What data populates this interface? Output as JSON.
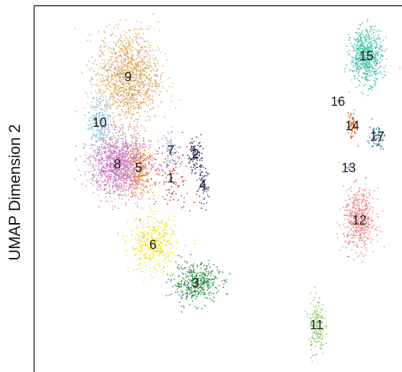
{
  "chart_data": {
    "type": "scatter",
    "title": "",
    "xlabel": "",
    "ylabel": "UMAP Dimension 2",
    "grid": false,
    "legend": "none",
    "axes_drawn": [
      "left",
      "top"
    ],
    "clusters": [
      {
        "label": "1",
        "x": 0.37,
        "y": 0.52,
        "color": "#d62728",
        "spread": [
          0.06,
          0.08
        ],
        "n": 120
      },
      {
        "label": "2",
        "x": 0.44,
        "y": 0.59,
        "color": "#1f1f5e",
        "spread": [
          0.02,
          0.05
        ],
        "n": 90
      },
      {
        "label": "3",
        "x": 0.44,
        "y": 0.22,
        "color": "#238b3a",
        "spread": [
          0.06,
          0.05
        ],
        "n": 420
      },
      {
        "label": "4",
        "x": 0.46,
        "y": 0.5,
        "color": "#3b2f7a",
        "spread": [
          0.015,
          0.05
        ],
        "n": 70
      },
      {
        "label": "5",
        "x": 0.28,
        "y": 0.55,
        "color": "#f08a24",
        "spread": [
          0.04,
          0.08
        ],
        "n": 350
      },
      {
        "label": "6",
        "x": 0.32,
        "y": 0.33,
        "color": "#f5e00b",
        "spread": [
          0.06,
          0.07
        ],
        "n": 380
      },
      {
        "label": "7",
        "x": 0.37,
        "y": 0.6,
        "color": "#8ea8d8",
        "spread": [
          0.02,
          0.04
        ],
        "n": 80
      },
      {
        "label": "8",
        "x": 0.22,
        "y": 0.56,
        "color": "#c77cbf",
        "spread": [
          0.07,
          0.08
        ],
        "n": 1200
      },
      {
        "label": "9",
        "x": 0.25,
        "y": 0.81,
        "color": "#d9a663",
        "spread": [
          0.08,
          0.12
        ],
        "n": 1300
      },
      {
        "label": "10",
        "x": 0.17,
        "y": 0.68,
        "color": "#8ecae6",
        "spread": [
          0.03,
          0.07
        ],
        "n": 260
      },
      {
        "label": "11",
        "x": 0.78,
        "y": 0.1,
        "color": "#7cc24a",
        "spread": [
          0.02,
          0.08
        ],
        "n": 160
      },
      {
        "label": "12",
        "x": 0.9,
        "y": 0.4,
        "color": "#f08080",
        "spread": [
          0.04,
          0.08
        ],
        "n": 520
      },
      {
        "label": "13",
        "x": 0.87,
        "y": 0.55,
        "color": "#b39ddb",
        "spread": [
          0.006,
          0.01
        ],
        "n": 18
      },
      {
        "label": "14",
        "x": 0.88,
        "y": 0.67,
        "color": "#d35400",
        "spread": [
          0.012,
          0.035
        ],
        "n": 60
      },
      {
        "label": "15",
        "x": 0.92,
        "y": 0.87,
        "color": "#3fbfa5",
        "spread": [
          0.04,
          0.07
        ],
        "n": 650
      },
      {
        "label": "16",
        "x": 0.84,
        "y": 0.74,
        "color": "#a0a0a0",
        "spread": [
          0.004,
          0.006
        ],
        "n": 6
      },
      {
        "label": "17",
        "x": 0.95,
        "y": 0.64,
        "color": "#1a6e8f",
        "spread": [
          0.02,
          0.03
        ],
        "n": 70
      }
    ]
  }
}
